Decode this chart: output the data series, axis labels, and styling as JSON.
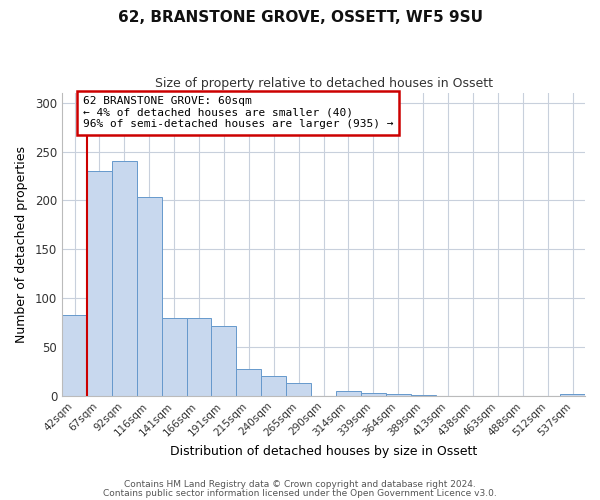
{
  "title": "62, BRANSTONE GROVE, OSSETT, WF5 9SU",
  "subtitle": "Size of property relative to detached houses in Ossett",
  "xlabel": "Distribution of detached houses by size in Ossett",
  "ylabel": "Number of detached properties",
  "bar_labels": [
    "42sqm",
    "67sqm",
    "92sqm",
    "116sqm",
    "141sqm",
    "166sqm",
    "191sqm",
    "215sqm",
    "240sqm",
    "265sqm",
    "290sqm",
    "314sqm",
    "339sqm",
    "364sqm",
    "389sqm",
    "413sqm",
    "438sqm",
    "463sqm",
    "488sqm",
    "512sqm",
    "537sqm"
  ],
  "bar_values": [
    83,
    230,
    240,
    204,
    80,
    80,
    72,
    27,
    20,
    13,
    0,
    5,
    3,
    2,
    1,
    0,
    0,
    0,
    0,
    0,
    2
  ],
  "bar_color": "#c8d8ee",
  "bar_edgecolor": "#6699cc",
  "marker_line_color": "#cc0000",
  "annotation_text": "62 BRANSTONE GROVE: 60sqm\n← 4% of detached houses are smaller (40)\n96% of semi-detached houses are larger (935) →",
  "annotation_box_edgecolor": "#cc0000",
  "ylim": [
    0,
    310
  ],
  "yticks": [
    0,
    50,
    100,
    150,
    200,
    250,
    300
  ],
  "footer1": "Contains HM Land Registry data © Crown copyright and database right 2024.",
  "footer2": "Contains public sector information licensed under the Open Government Licence v3.0.",
  "bg_color": "#ffffff",
  "plot_bg_color": "#ffffff",
  "grid_color": "#c8d0dc"
}
